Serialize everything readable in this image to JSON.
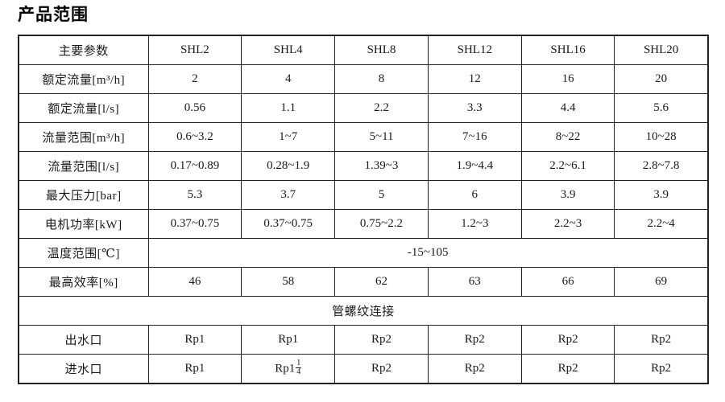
{
  "page_title": "产品范围",
  "table": {
    "param_header": "主要参数",
    "models": [
      "SHL2",
      "SHL4",
      "SHL8",
      "SHL12",
      "SHL16",
      "SHL20"
    ],
    "rows": [
      {
        "type": "normal",
        "label": "额定流量[m³/h]",
        "values": [
          "2",
          "4",
          "8",
          "12",
          "16",
          "20"
        ]
      },
      {
        "type": "normal",
        "label": "额定流量[l/s]",
        "values": [
          "0.56",
          "1.1",
          "2.2",
          "3.3",
          "4.4",
          "5.6"
        ]
      },
      {
        "type": "normal",
        "label": "流量范围[m³/h]",
        "values": [
          "0.6~3.2",
          "1~7",
          "5~11",
          "7~16",
          "8~22",
          "10~28"
        ]
      },
      {
        "type": "normal",
        "label": "流量范围[l/s]",
        "values": [
          "0.17~0.89",
          "0.28~1.9",
          "1.39~3",
          "1.9~4.4",
          "2.2~6.1",
          "2.8~7.8"
        ]
      },
      {
        "type": "normal",
        "label": "最大压力[bar]",
        "values": [
          "5.3",
          "3.7",
          "5",
          "6",
          "3.9",
          "3.9"
        ]
      },
      {
        "type": "normal",
        "label": "电机功率[kW]",
        "values": [
          "0.37~0.75",
          "0.37~0.75",
          "0.75~2.2",
          "1.2~3",
          "2.2~3",
          "2.2~4"
        ]
      },
      {
        "type": "merged",
        "label": "温度范围[℃]",
        "merged_value": "-15~105"
      },
      {
        "type": "normal",
        "label": "最高效率[%]",
        "values": [
          "46",
          "58",
          "62",
          "63",
          "66",
          "69"
        ]
      },
      {
        "type": "full",
        "label": "管螺纹连接"
      },
      {
        "type": "normal",
        "label": "出水口",
        "values": [
          "Rp1",
          "Rp1",
          "Rp2",
          "Rp2",
          "Rp2",
          "Rp2"
        ]
      },
      {
        "type": "normal",
        "label": "进水口",
        "values": [
          "Rp1",
          "Rp1¼",
          "Rp2",
          "Rp2",
          "Rp2",
          "Rp2"
        ]
      }
    ]
  },
  "colors": {
    "text": "#1a1a1a",
    "border": "#222222",
    "background": "#ffffff"
  }
}
